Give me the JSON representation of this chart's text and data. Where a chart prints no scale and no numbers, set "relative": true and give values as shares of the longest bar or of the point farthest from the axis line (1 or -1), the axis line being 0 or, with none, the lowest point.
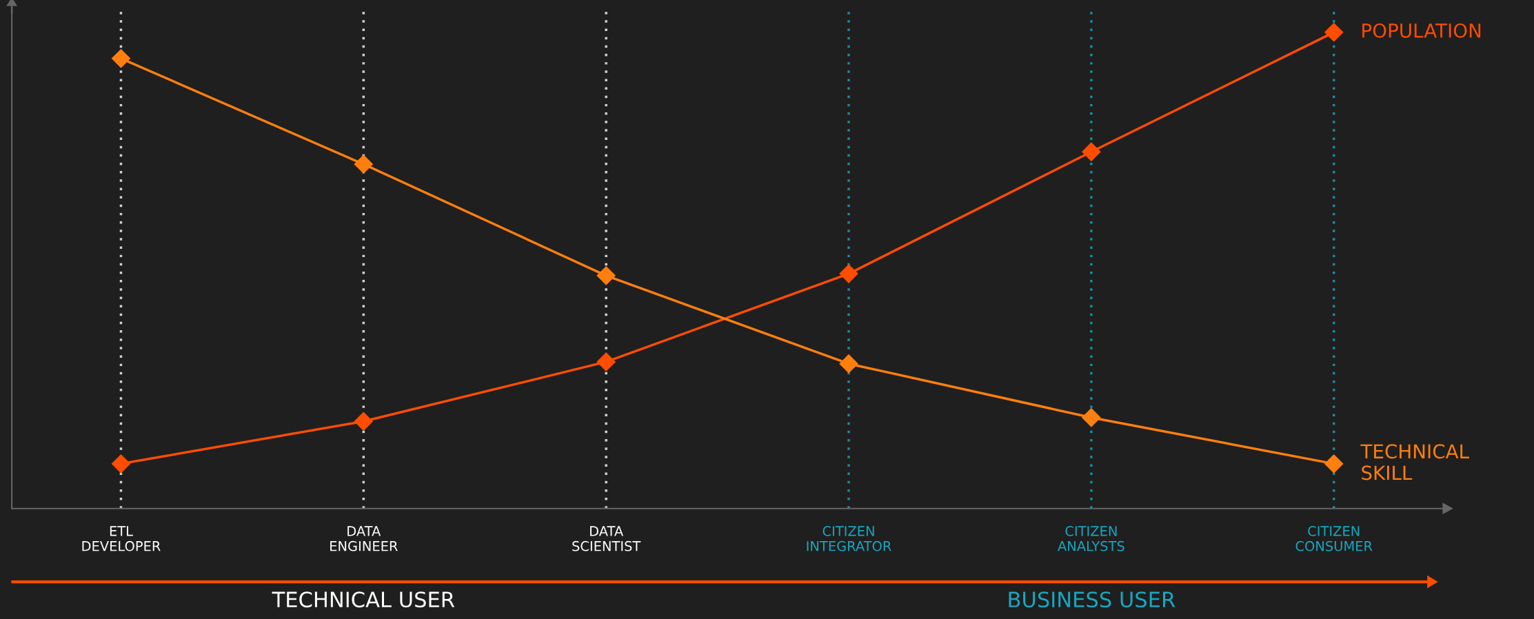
{
  "chart_data": {
    "type": "line",
    "relative": true,
    "categories": [
      "ETL\nDEVELOPER",
      "DATA\nENGINEER",
      "DATA\nSCIENTIST",
      "CITIZEN\nINTEGRATOR",
      "CITIZEN\nANALYSTS",
      "CITIZEN\nCONSUMER"
    ],
    "series": [
      {
        "name": "POPULATION",
        "color": "#ff4d00",
        "values": [
          0.094,
          0.183,
          0.308,
          0.493,
          0.749,
          1.0
        ]
      },
      {
        "name": "TECHNICAL SKILL",
        "color": "#ff7f0e",
        "values": [
          0.945,
          0.723,
          0.489,
          0.304,
          0.191,
          0.094
        ]
      }
    ],
    "annotations": [
      "TECHNICAL USER",
      "BUSINESS USER"
    ],
    "marker": "diamond",
    "line_style": "solid",
    "grid": "x",
    "legend": "right"
  }
}
